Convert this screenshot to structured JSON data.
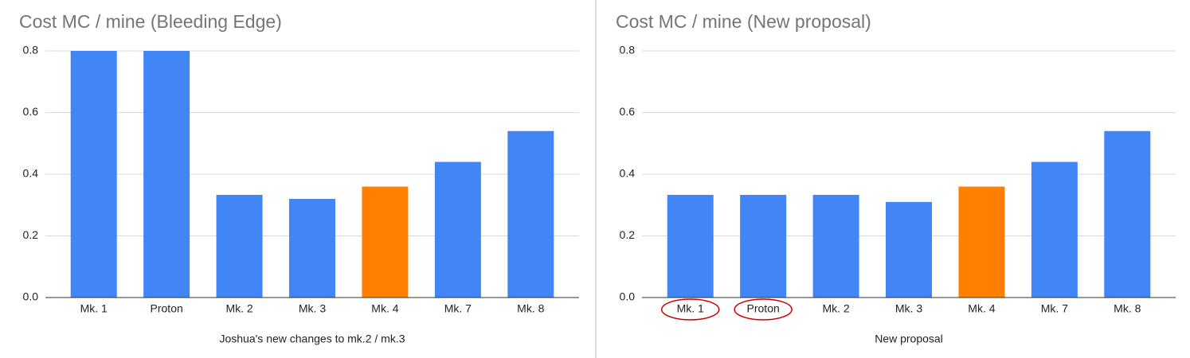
{
  "chart_data": [
    {
      "type": "bar",
      "title": "Cost MC / mine (Bleeding Edge)",
      "x_label": "Joshua's new changes to mk.2 / mk.3",
      "categories": [
        "Mk. 1",
        "Proton",
        "Mk. 2",
        "Mk. 3",
        "Mk. 4",
        "Mk. 7",
        "Mk. 8"
      ],
      "values": [
        0.8,
        0.8,
        0.333,
        0.32,
        0.36,
        0.44,
        0.54
      ],
      "colors": [
        "#4285f4",
        "#4285f4",
        "#4285f4",
        "#4285f4",
        "#ff8000",
        "#4285f4",
        "#4285f4"
      ],
      "ylim": [
        0,
        0.8
      ],
      "yticks": [
        {
          "value": 0,
          "label": "0.0"
        },
        0.2,
        0.4,
        0.6,
        0.8
      ],
      "grid": true
    },
    {
      "type": "bar",
      "title": "Cost MC / mine (New proposal)",
      "x_label": "New proposal",
      "categories": [
        "Mk. 1",
        "Proton",
        "Mk. 2",
        "Mk. 3",
        "Mk. 4",
        "Mk. 7",
        "Mk. 8"
      ],
      "values": [
        0.333,
        0.333,
        0.333,
        0.31,
        0.36,
        0.44,
        0.54
      ],
      "colors": [
        "#4285f4",
        "#4285f4",
        "#4285f4",
        "#4285f4",
        "#ff8000",
        "#4285f4",
        "#4285f4"
      ],
      "ylim": [
        0,
        0.8
      ],
      "yticks": [
        {
          "value": 0,
          "label": "0.0"
        },
        0.2,
        0.4,
        0.6,
        0.8
      ],
      "grid": true,
      "circled_categories": [
        0,
        1
      ],
      "circle_color": "#cc0000"
    }
  ]
}
